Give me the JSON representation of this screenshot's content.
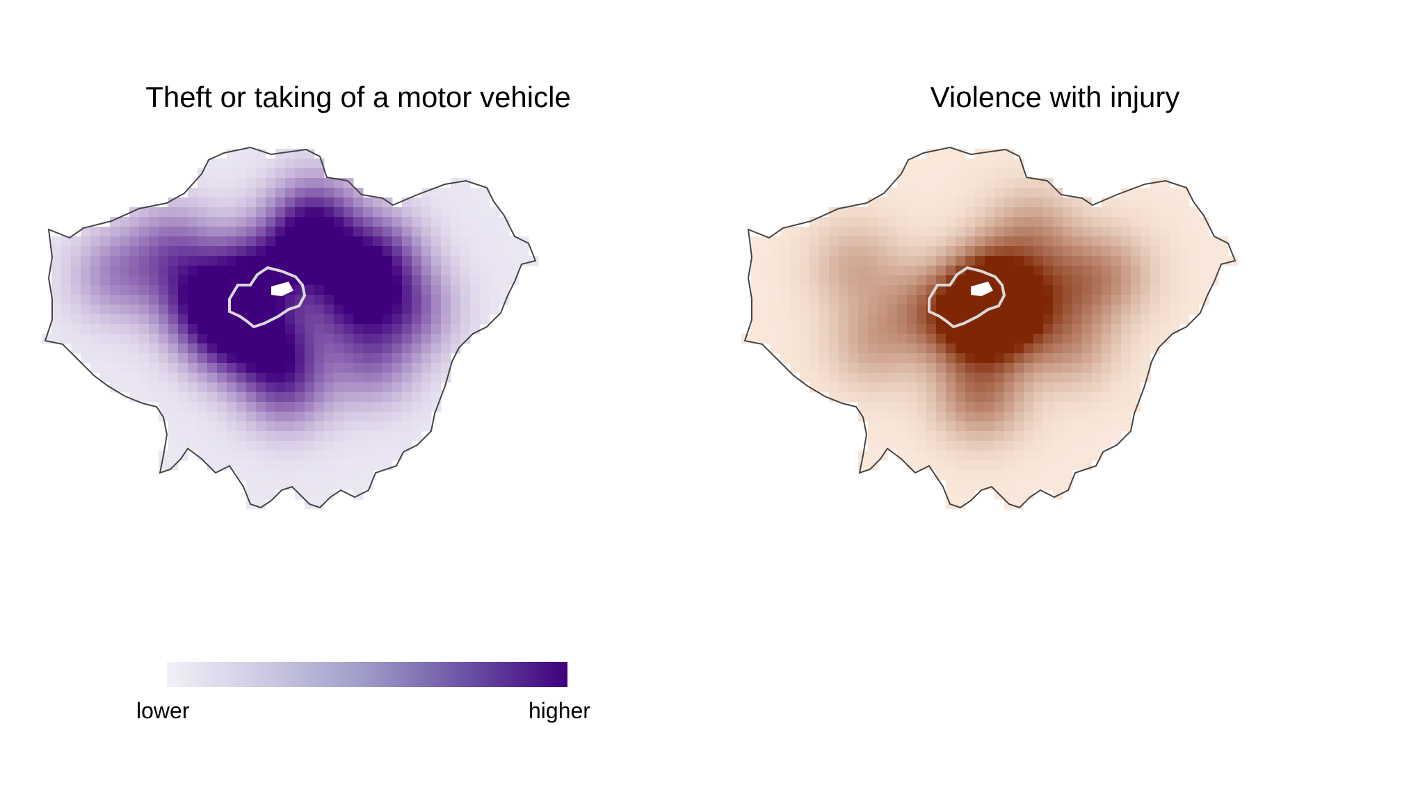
{
  "panels": [
    {
      "title": "Theft or taking of a motor vehicle",
      "color_low": "#f2f0f7",
      "color_high": "#3f007d",
      "hotspots": [
        {
          "lon": -0.16,
          "lat": 51.55,
          "w": 0.9
        },
        {
          "lon": -0.06,
          "lat": 51.58,
          "w": 0.9
        },
        {
          "lon": 0.06,
          "lat": 51.57,
          "w": 0.8
        },
        {
          "lon": -0.25,
          "lat": 51.52,
          "w": 0.85
        },
        {
          "lon": -0.2,
          "lat": 51.48,
          "w": 0.8
        },
        {
          "lon": -0.12,
          "lat": 51.47,
          "w": 0.75
        },
        {
          "lon": 0.02,
          "lat": 51.52,
          "w": 0.8
        },
        {
          "lon": -0.3,
          "lat": 51.58,
          "w": 0.55
        },
        {
          "lon": -0.4,
          "lat": 51.55,
          "w": 0.45
        },
        {
          "lon": 0.12,
          "lat": 51.51,
          "w": 0.55
        },
        {
          "lon": -0.1,
          "lat": 51.42,
          "w": 0.6
        },
        {
          "lon": 0.05,
          "lat": 51.45,
          "w": 0.5
        },
        {
          "lon": -0.05,
          "lat": 51.62,
          "w": 0.6
        }
      ]
    },
    {
      "title": "Violence with injury",
      "color_low": "#fef0e4",
      "color_high": "#7f2704",
      "hotspots": [
        {
          "lon": -0.1,
          "lat": 51.515,
          "w": 1.0
        },
        {
          "lon": -0.12,
          "lat": 51.49,
          "w": 0.7
        },
        {
          "lon": -0.08,
          "lat": 51.54,
          "w": 0.65
        },
        {
          "lon": -0.05,
          "lat": 51.5,
          "w": 0.6
        },
        {
          "lon": -0.11,
          "lat": 51.41,
          "w": 0.6
        },
        {
          "lon": -0.21,
          "lat": 51.51,
          "w": 0.45
        },
        {
          "lon": 0.04,
          "lat": 51.54,
          "w": 0.45
        },
        {
          "lon": 0.12,
          "lat": 51.55,
          "w": 0.4
        },
        {
          "lon": -0.3,
          "lat": 51.47,
          "w": 0.35
        },
        {
          "lon": -0.33,
          "lat": 51.56,
          "w": 0.35
        },
        {
          "lon": 0.05,
          "lat": 51.47,
          "w": 0.4
        },
        {
          "lon": -0.02,
          "lat": 51.6,
          "w": 0.4
        }
      ]
    }
  ],
  "legend": {
    "lower_label": "lower",
    "higher_label": "higher",
    "gradient": [
      "#f2f0f7",
      "#cbc9e2",
      "#9e9ac8",
      "#6a51a3",
      "#3f007d"
    ]
  },
  "outline_color": "#444444",
  "inner_outline_color": "#d9d9d9"
}
